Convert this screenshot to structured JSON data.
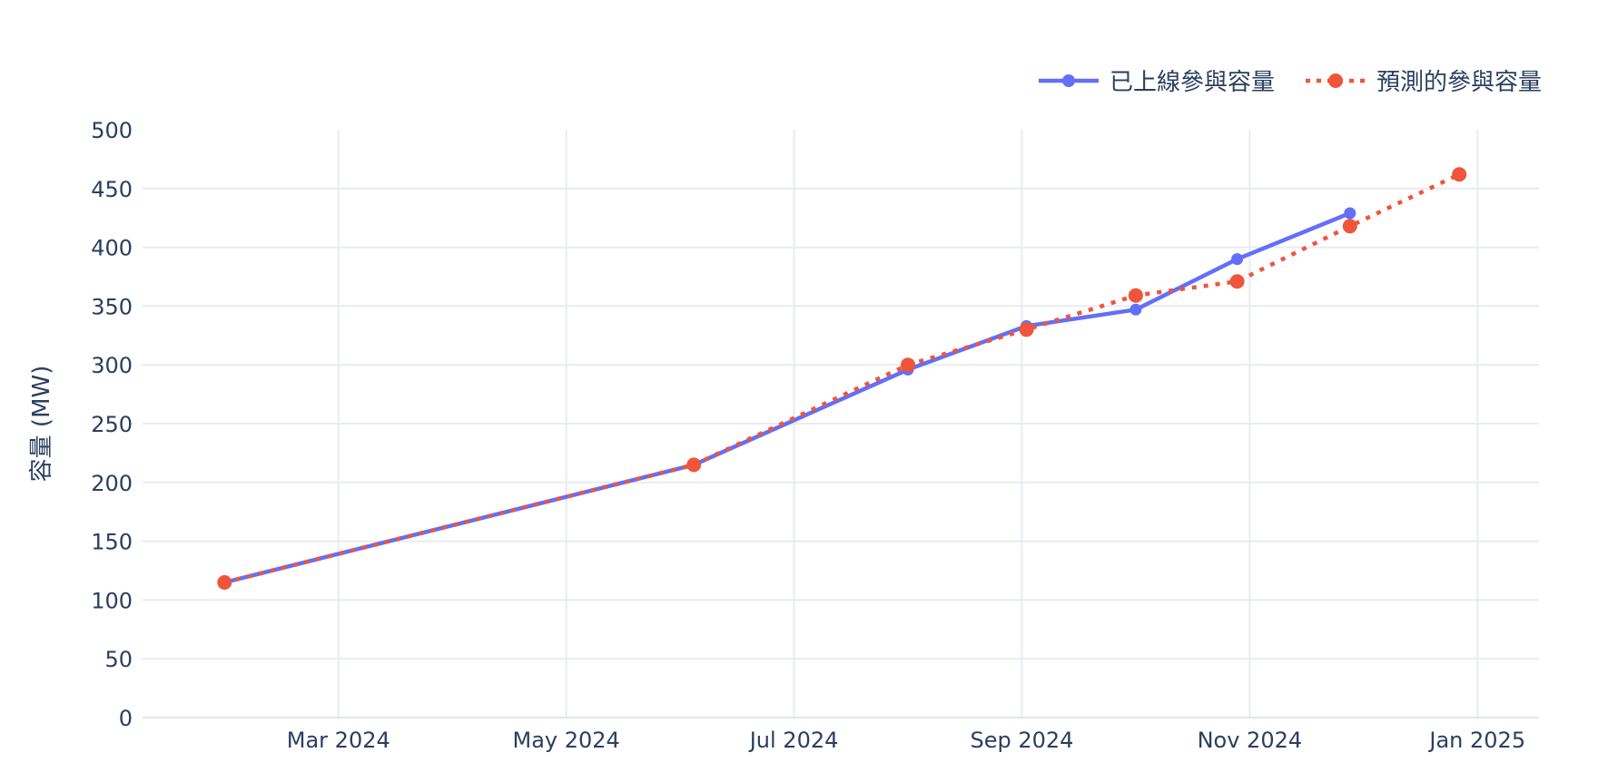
{
  "colors": {
    "text": "#2a3f5f",
    "grid": "#e8ecf3",
    "zero_line": "#e2e6ed",
    "background": "#ffffff",
    "series_online": "#636efa",
    "series_forecast": "#ef553b"
  },
  "legend": {
    "items": [
      {
        "label": "已上線參與容量"
      },
      {
        "label": "預測的參與容量"
      }
    ]
  },
  "chart_data": {
    "type": "line",
    "title": "",
    "xlabel": "",
    "ylabel": "容量 (MW)",
    "ylim": [
      0,
      500
    ],
    "ytick_step": 50,
    "ytick_labels": [
      "0",
      "50",
      "100",
      "150",
      "200",
      "250",
      "300",
      "350",
      "400",
      "450",
      "500"
    ],
    "grid": true,
    "legend_position": "top-right",
    "xtick_labels": [
      "Mar 2024",
      "May 2024",
      "Jul 2024",
      "Sep 2024",
      "Nov 2024",
      "Jan 2025"
    ],
    "xtick_months_since_jan2024": [
      2,
      4,
      6,
      8,
      10,
      12
    ],
    "x_range_months_since_jan2024": [
      0.28,
      12.54
    ],
    "series": [
      {
        "key": "online",
        "name": "已上線參與容量",
        "color": "#636efa",
        "style": "solid",
        "marker_radius": 6.5,
        "points": [
          {
            "date": "2024-02-01",
            "m": 1.0,
            "value": 115
          },
          {
            "date": "2024-06-05",
            "m": 5.12,
            "value": 215
          },
          {
            "date": "2024-08-01",
            "m": 7.0,
            "value": 296
          },
          {
            "date": "2024-09-02",
            "m": 8.04,
            "value": 333
          },
          {
            "date": "2024-10-01",
            "m": 9.0,
            "value": 347
          },
          {
            "date": "2024-10-28",
            "m": 9.89,
            "value": 390
          },
          {
            "date": "2024-11-27",
            "m": 10.88,
            "value": 429
          }
        ]
      },
      {
        "key": "forecast",
        "name": "預測的參與容量",
        "color": "#ef553b",
        "style": "dotted",
        "marker_radius": 8,
        "points": [
          {
            "date": "2024-02-01",
            "m": 1.0,
            "value": 115
          },
          {
            "date": "2024-06-05",
            "m": 5.12,
            "value": 215
          },
          {
            "date": "2024-08-01",
            "m": 7.0,
            "value": 300
          },
          {
            "date": "2024-09-02",
            "m": 8.04,
            "value": 330
          },
          {
            "date": "2024-10-01",
            "m": 9.0,
            "value": 359
          },
          {
            "date": "2024-10-28",
            "m": 9.89,
            "value": 371
          },
          {
            "date": "2024-11-27",
            "m": 10.88,
            "value": 418
          },
          {
            "date": "2024-12-26",
            "m": 11.84,
            "value": 462
          }
        ]
      }
    ]
  }
}
